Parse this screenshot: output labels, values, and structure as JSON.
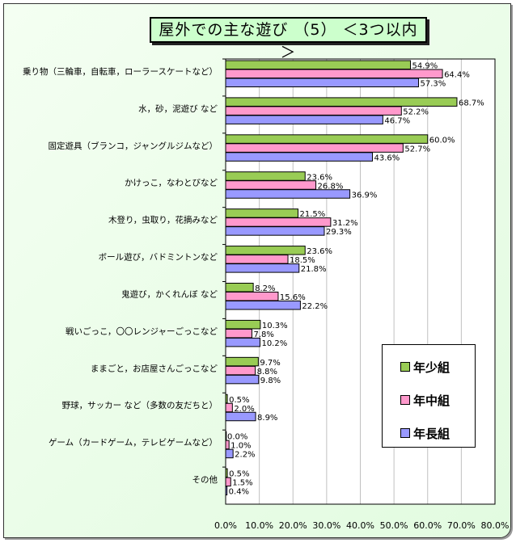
{
  "chart_data": {
    "type": "bar",
    "orientation": "horizontal",
    "title": "屋外での主な遊び （5） ＜3つ以内＞",
    "categories": [
      "乗り物（三輪車，自転車，ローラースケートなど）",
      "水，砂，泥遊び など",
      "固定遊具（ブランコ，ジャングルジムなど）",
      "かけっこ，なわとびなど",
      "木登り，虫取り，花摘みなど",
      "ボール遊び，バドミントンなど",
      "鬼遊び，かくれんぼ など",
      "戦いごっこ，〇〇レンジャーごっこなど",
      "ままごと，お店屋さんごっこなど",
      "野球，サッカー など（多数の友だちと）",
      "ゲーム（カードゲーム，テレビゲームなど）",
      "その他"
    ],
    "series": [
      {
        "name": "年少組",
        "color": "#99cc55",
        "values": [
          54.9,
          68.7,
          60.0,
          23.6,
          21.5,
          23.6,
          8.2,
          10.3,
          9.7,
          0.5,
          0.0,
          0.5
        ]
      },
      {
        "name": "年中組",
        "color": "#ff99cc",
        "values": [
          64.4,
          52.2,
          52.7,
          26.8,
          31.2,
          18.5,
          15.6,
          7.8,
          8.8,
          2.0,
          1.0,
          1.5
        ]
      },
      {
        "name": "年長組",
        "color": "#9999ff",
        "values": [
          57.3,
          46.7,
          43.6,
          36.9,
          29.3,
          21.8,
          22.2,
          10.2,
          9.8,
          8.9,
          2.2,
          0.4
        ]
      }
    ],
    "xlim": [
      0,
      80
    ],
    "xticks": [
      "0.0%",
      "10.0%",
      "20.0%",
      "30.0%",
      "40.0%",
      "50.0%",
      "60.0%",
      "70.0%",
      "80.0%"
    ],
    "grid": true,
    "legend_position": "bottom-right"
  }
}
